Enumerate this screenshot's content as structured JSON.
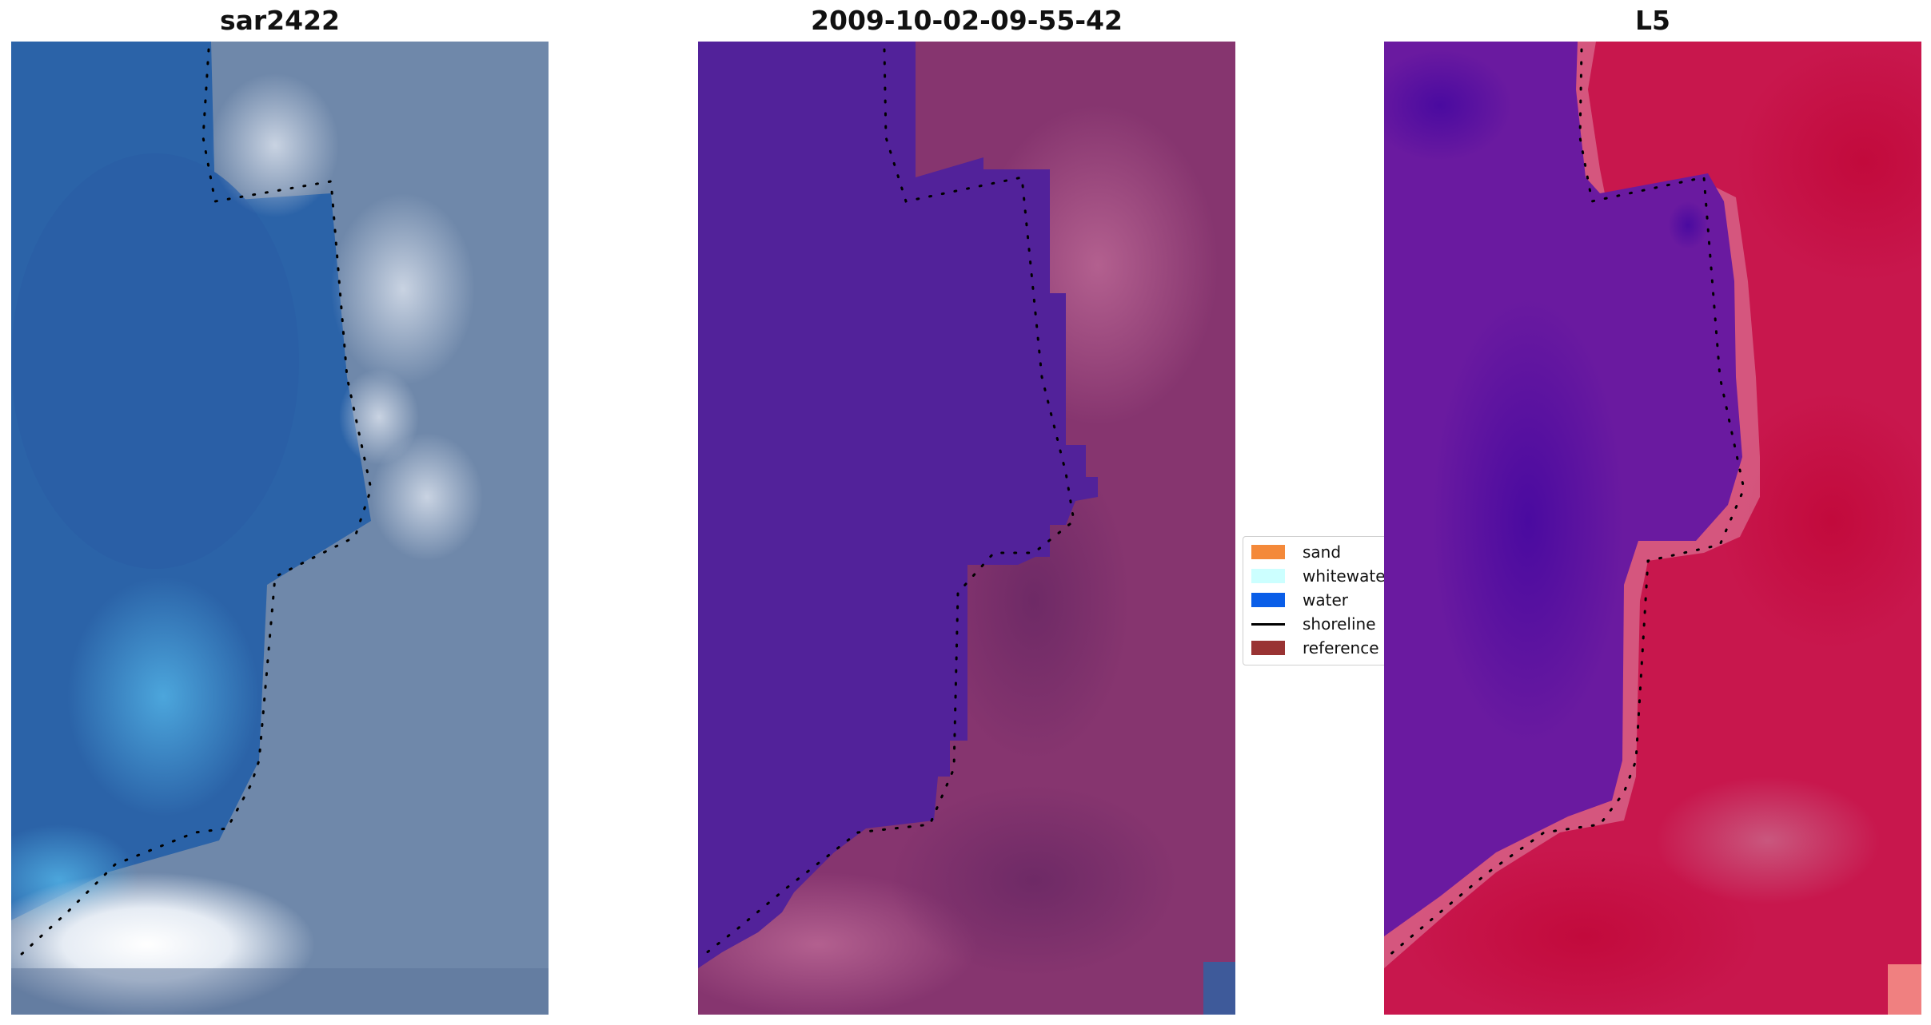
{
  "panels": {
    "left": {
      "title": "sar2422"
    },
    "middle": {
      "title": "2009-10-02-09-55-42"
    },
    "right": {
      "title": "L5"
    }
  },
  "legend": {
    "items": [
      {
        "label": "sand",
        "color": "#f4893a",
        "kind": "swatch"
      },
      {
        "label": "whitewater",
        "color": "#ccffff",
        "kind": "swatch"
      },
      {
        "label": "water",
        "color": "#0a5ee8",
        "kind": "swatch"
      },
      {
        "label": "shoreline",
        "color": "#000000",
        "kind": "line"
      },
      {
        "label": "reference shoreline",
        "color": "#993333",
        "kind": "swatch"
      }
    ]
  },
  "colors": {
    "water_class": "#52229a",
    "sand_tint": "#8a3a7a",
    "sea_blue": "#2d6fb8",
    "land_gray": "#6f88a8",
    "index_water": "#6a1aa0",
    "index_land": "#c8174d"
  }
}
